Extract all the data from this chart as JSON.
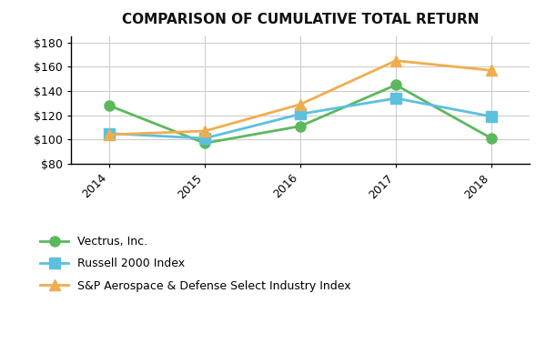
{
  "title": "COMPARISON OF CUMULATIVE TOTAL RETURN",
  "years": [
    2014,
    2015,
    2016,
    2017,
    2018
  ],
  "vectrus": [
    128,
    97,
    111,
    145,
    101
  ],
  "russell": [
    105,
    101,
    121,
    134,
    119
  ],
  "sp_aerospace": [
    104,
    107,
    129,
    165,
    157
  ],
  "vectrus_color": "#5cb85c",
  "russell_color": "#5bc0de",
  "sp_color": "#f0ad4e",
  "ylim": [
    80,
    185
  ],
  "yticks": [
    80,
    100,
    120,
    140,
    160,
    180
  ],
  "legend_labels": [
    "Vectrus, Inc.",
    "Russell 2000 Index",
    "S&P Aerospace & Defense Select Industry Index"
  ],
  "background_color": "#ffffff",
  "grid_color": "#cccccc",
  "title_fontsize": 11,
  "legend_fontsize": 9,
  "tick_fontsize": 9
}
